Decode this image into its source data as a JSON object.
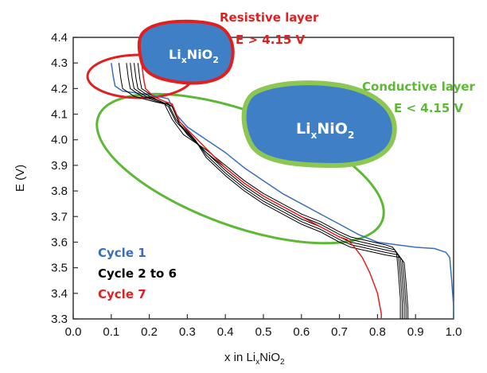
{
  "chart_data": {
    "type": "line",
    "xlabel": "x in Li",
    "xlabel_sub": "x",
    "xlabel_tail": "NiO",
    "xlabel_sub2": "2",
    "ylabel": "E (V)",
    "xlim": [
      0.0,
      1.0
    ],
    "ylim": [
      3.3,
      4.4
    ],
    "x_ticks": [
      "0.0",
      "0.1",
      "0.2",
      "0.3",
      "0.4",
      "0.5",
      "0.6",
      "0.7",
      "0.8",
      "0.9",
      "1.0"
    ],
    "y_ticks": [
      "3.3",
      "3.4",
      "3.5",
      "3.6",
      "3.7",
      "3.8",
      "3.9",
      "4.0",
      "4.1",
      "4.2",
      "4.3",
      "4.4"
    ],
    "grid": false,
    "legend": [
      {
        "label": "Cycle 1",
        "color": "#3a6fb8"
      },
      {
        "label": "Cycle 2 to 6",
        "color": "#000000"
      },
      {
        "label": "Cycle 7",
        "color": "#e02020"
      }
    ],
    "series": [
      {
        "name": "Cycle 1",
        "color": "#3a6fb8",
        "x": [
          0.1,
          0.105,
          0.11,
          0.13,
          0.18,
          0.22,
          0.25,
          0.27,
          0.3,
          0.35,
          0.4,
          0.45,
          0.5,
          0.55,
          0.6,
          0.65,
          0.7,
          0.75,
          0.8,
          0.85,
          0.9,
          0.95,
          0.98,
          0.99,
          0.995,
          1.0,
          1.0
        ],
        "y": [
          4.3,
          4.25,
          4.21,
          4.19,
          4.18,
          4.17,
          4.16,
          4.1,
          4.05,
          4.0,
          3.95,
          3.89,
          3.84,
          3.79,
          3.75,
          3.71,
          3.67,
          3.63,
          3.6,
          3.59,
          3.58,
          3.575,
          3.56,
          3.54,
          3.45,
          3.35,
          3.3
        ]
      },
      {
        "name": "Cycle 2 to 6",
        "color": "#000000",
        "x": [
          0.12,
          0.125,
          0.13,
          0.16,
          0.21,
          0.24,
          0.26,
          0.29,
          0.35,
          0.4,
          0.45,
          0.5,
          0.55,
          0.6,
          0.65,
          0.7,
          0.73,
          0.76,
          0.79,
          0.82,
          0.84,
          0.85,
          0.855,
          0.86,
          0.86
        ],
        "y": [
          4.3,
          4.24,
          4.2,
          4.17,
          4.15,
          4.14,
          4.08,
          4.02,
          3.96,
          3.9,
          3.84,
          3.79,
          3.75,
          3.71,
          3.68,
          3.64,
          3.62,
          3.61,
          3.6,
          3.59,
          3.58,
          3.56,
          3.48,
          3.38,
          3.3
        ]
      },
      {
        "name": "Cycle 2 to 6",
        "color": "#000000",
        "x": [
          0.14,
          0.145,
          0.15,
          0.18,
          0.22,
          0.25,
          0.27,
          0.3,
          0.35,
          0.4,
          0.45,
          0.5,
          0.55,
          0.6,
          0.65,
          0.7,
          0.73,
          0.76,
          0.79,
          0.82,
          0.845,
          0.855,
          0.86,
          0.865,
          0.865
        ],
        "y": [
          4.3,
          4.24,
          4.2,
          4.17,
          4.15,
          4.14,
          4.08,
          4.02,
          3.95,
          3.89,
          3.83,
          3.78,
          3.74,
          3.7,
          3.67,
          3.63,
          3.61,
          3.6,
          3.59,
          3.58,
          3.57,
          3.55,
          3.47,
          3.37,
          3.3
        ]
      },
      {
        "name": "Cycle 2 to 6",
        "color": "#000000",
        "x": [
          0.15,
          0.155,
          0.16,
          0.19,
          0.23,
          0.25,
          0.27,
          0.31,
          0.35,
          0.4,
          0.45,
          0.5,
          0.55,
          0.6,
          0.65,
          0.7,
          0.73,
          0.76,
          0.79,
          0.82,
          0.85,
          0.86,
          0.865,
          0.87,
          0.87
        ],
        "y": [
          4.3,
          4.24,
          4.2,
          4.17,
          4.15,
          4.13,
          4.07,
          4.01,
          3.95,
          3.88,
          3.82,
          3.77,
          3.73,
          3.69,
          3.66,
          3.62,
          3.6,
          3.59,
          3.58,
          3.57,
          3.56,
          3.54,
          3.46,
          3.36,
          3.3
        ]
      },
      {
        "name": "Cycle 2 to 6",
        "color": "#000000",
        "x": [
          0.16,
          0.165,
          0.17,
          0.2,
          0.23,
          0.26,
          0.28,
          0.32,
          0.35,
          0.4,
          0.45,
          0.5,
          0.55,
          0.6,
          0.65,
          0.7,
          0.73,
          0.76,
          0.79,
          0.82,
          0.855,
          0.865,
          0.87,
          0.875,
          0.875
        ],
        "y": [
          4.3,
          4.24,
          4.2,
          4.17,
          4.15,
          4.13,
          4.07,
          4.0,
          3.94,
          3.87,
          3.81,
          3.76,
          3.72,
          3.68,
          3.65,
          3.61,
          3.59,
          3.58,
          3.57,
          3.56,
          3.55,
          3.53,
          3.45,
          3.35,
          3.3
        ]
      },
      {
        "name": "Cycle 2 to 6",
        "color": "#000000",
        "x": [
          0.17,
          0.175,
          0.18,
          0.21,
          0.24,
          0.26,
          0.28,
          0.32,
          0.35,
          0.4,
          0.45,
          0.5,
          0.55,
          0.6,
          0.65,
          0.7,
          0.73,
          0.76,
          0.79,
          0.82,
          0.86,
          0.87,
          0.875,
          0.88,
          0.88
        ],
        "y": [
          4.3,
          4.24,
          4.2,
          4.17,
          4.15,
          4.13,
          4.06,
          4.0,
          3.93,
          3.86,
          3.8,
          3.75,
          3.71,
          3.67,
          3.64,
          3.6,
          3.58,
          3.57,
          3.56,
          3.55,
          3.54,
          3.52,
          3.44,
          3.34,
          3.3
        ]
      },
      {
        "name": "Cycle 7",
        "color": "#e02020",
        "x": [
          0.18,
          0.185,
          0.19,
          0.21,
          0.24,
          0.26,
          0.28,
          0.32,
          0.36,
          0.4,
          0.45,
          0.5,
          0.55,
          0.6,
          0.65,
          0.7,
          0.72,
          0.74,
          0.76,
          0.78,
          0.79,
          0.8,
          0.805,
          0.81,
          0.81
        ],
        "y": [
          4.3,
          4.24,
          4.2,
          4.17,
          4.15,
          4.14,
          4.07,
          4.01,
          3.95,
          3.89,
          3.83,
          3.78,
          3.74,
          3.7,
          3.66,
          3.62,
          3.61,
          3.58,
          3.54,
          3.48,
          3.44,
          3.4,
          3.36,
          3.32,
          3.3
        ]
      }
    ],
    "annotations": {
      "resistive_title": "Resistive layer",
      "resistive_cond": "E > 4.15 V",
      "conductive_title": "Conductive layer",
      "conductive_cond": "E < 4.15 V",
      "particle_main": "Li",
      "particle_sub": "x",
      "particle_tail": "NiO",
      "particle_sub2": "2"
    },
    "annotation_colors": {
      "resistive": "#e02020",
      "conductive": "#5cb835",
      "particle_fill": "#3f7fc5"
    }
  }
}
